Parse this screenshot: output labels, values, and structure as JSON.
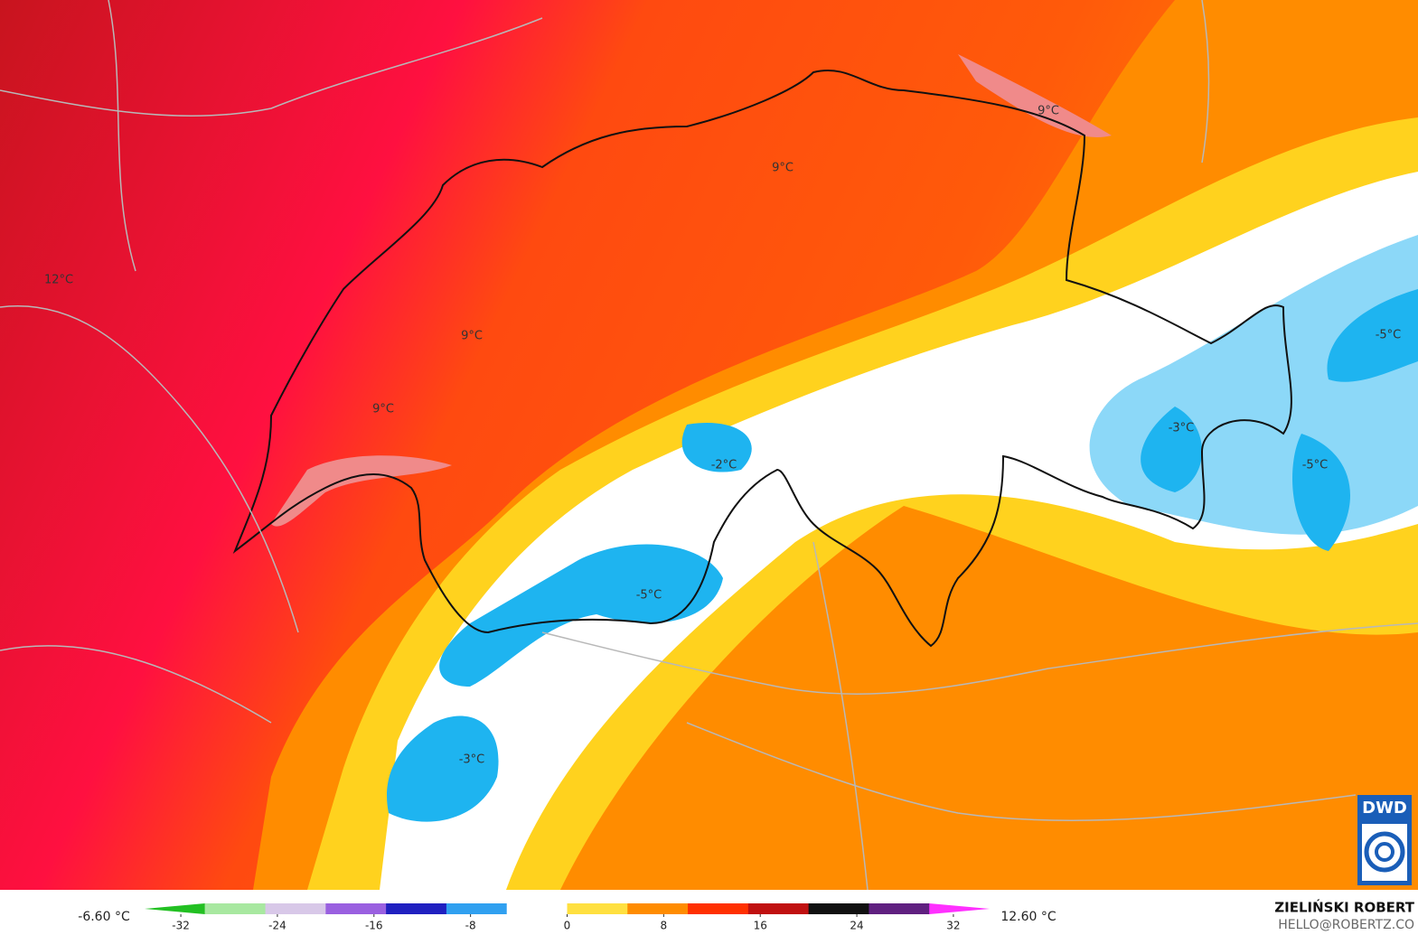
{
  "map": {
    "labels": [
      "12°C",
      "9°C",
      "9°C",
      "9°C",
      "9°C",
      "-2°C",
      "-3°C",
      "-5°C",
      "-5°C",
      "-5°C",
      "-3°C"
    ]
  },
  "colorbar": {
    "min_label": "-6.60 °C",
    "max_label": "12.60 °C",
    "lim": [
      -35,
      35
    ],
    "ticks": [
      -32,
      -24,
      -16,
      -8,
      0,
      8,
      16,
      24,
      32
    ],
    "colors": [
      "#22c022",
      "#a8e8a0",
      "#d8c8e8",
      "#9a60e0",
      "#2020c0",
      "#30a0f0",
      "#ffffff",
      "#ffe040",
      "#ff8c00",
      "#ff3000",
      "#c01010",
      "#101010",
      "#602080",
      "#ff30ff"
    ]
  },
  "credit": {
    "author": "ZIELIŃSKI ROBERT",
    "email": "HELLO@ROBERTZ.CO",
    "logo": "DWD"
  }
}
